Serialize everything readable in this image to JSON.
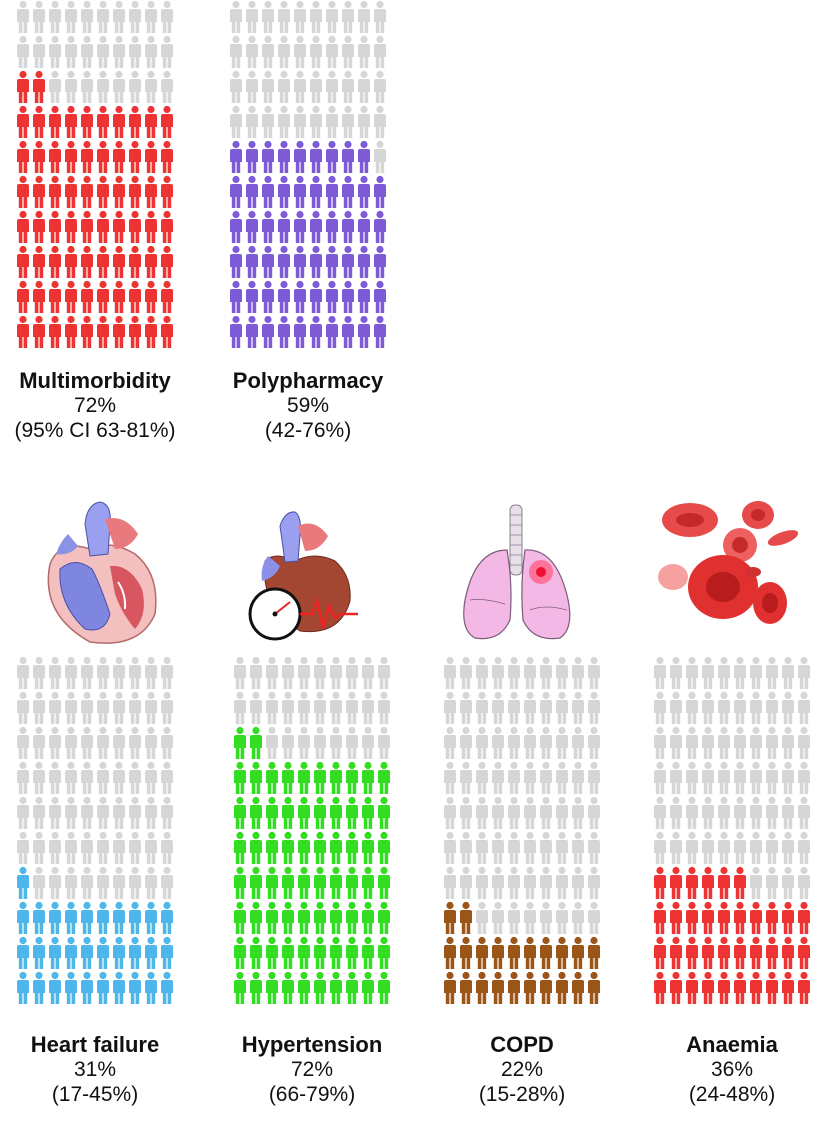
{
  "chart_data": {
    "type": "pictograph",
    "people_per_chart": 100,
    "grid": "10 columns x 10 rows, filled from bottom",
    "panels": [
      {
        "name": "Multimorbidity",
        "percent": 72,
        "percent_label": "72%",
        "ci_label": "(95% CI 63-81%)",
        "color": "#ee3333"
      },
      {
        "name": "Polypharmacy",
        "percent": 59,
        "percent_label": "59%",
        "ci_label": "(42-76%)",
        "color": "#7d5bd6"
      },
      {
        "name": "Heart failure",
        "percent": 31,
        "percent_label": "31%",
        "ci_label": "(17-45%)",
        "color": "#4db6ea"
      },
      {
        "name": "Hypertension",
        "percent": 72,
        "percent_label": "72%",
        "ci_label": "(66-79%)",
        "color": "#33dd22"
      },
      {
        "name": "COPD",
        "percent": 22,
        "percent_label": "22%",
        "ci_label": "(15-28%)",
        "color": "#9a5518"
      },
      {
        "name": "Anaemia",
        "percent": 36,
        "percent_label": "36%",
        "ci_label": "(24-48%)",
        "color": "#ee3333"
      }
    ],
    "empty_color": "#d6d6d6"
  }
}
